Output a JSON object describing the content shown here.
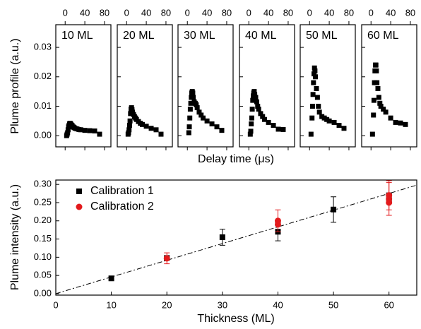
{
  "chart_data": [
    {
      "type": "scatter",
      "label": "10 ML",
      "color": "#000000",
      "ylabel": "Plume profile (a.u.)",
      "xlabel": "Delay time (μs)",
      "xlim": [
        -19,
        93
      ],
      "xticks": [
        0,
        40,
        80
      ],
      "ylim": [
        -0.0038,
        0.0377
      ],
      "yticks": [
        {
          "value": 0,
          "label": "0.00"
        },
        0.01,
        0.02,
        0.03
      ],
      "x": [
        3,
        4,
        5,
        6,
        7,
        8,
        9,
        10,
        11,
        12,
        14,
        16,
        18,
        20,
        24,
        28,
        32,
        40,
        50,
        60,
        70
      ],
      "values": [
        0.0,
        0.0005,
        0.001,
        0.002,
        0.003,
        0.0035,
        0.004,
        0.0042,
        0.004,
        0.0038,
        0.0035,
        0.003,
        0.0028,
        0.0025,
        0.0023,
        0.0021,
        0.002,
        0.0018,
        0.0017,
        0.0016,
        0.0005
      ]
    },
    {
      "type": "scatter",
      "label": "20 ML",
      "color": "#000000",
      "xlim": [
        -19,
        93
      ],
      "xticks": [
        0,
        40,
        80
      ],
      "ylim": [
        -0.0038,
        0.0377
      ],
      "x": [
        3,
        4,
        5,
        6,
        7,
        8,
        9,
        10,
        11,
        12,
        14,
        16,
        18,
        20,
        24,
        28,
        32,
        40,
        50,
        60,
        70
      ],
      "values": [
        0.0005,
        0.001,
        0.002,
        0.0035,
        0.005,
        0.0075,
        0.009,
        0.0095,
        0.0088,
        0.008,
        0.0072,
        0.0065,
        0.006,
        0.0055,
        0.0048,
        0.0042,
        0.0038,
        0.0032,
        0.0025,
        0.002,
        0.0005
      ]
    },
    {
      "type": "scatter",
      "label": "30 ML",
      "color": "#000000",
      "xlim": [
        -19,
        93
      ],
      "xticks": [
        0,
        40,
        80
      ],
      "ylim": [
        -0.0038,
        0.0377
      ],
      "x": [
        3,
        4,
        5,
        6,
        7,
        8,
        9,
        10,
        11,
        12,
        14,
        16,
        18,
        20,
        24,
        28,
        32,
        40,
        50,
        60,
        70
      ],
      "values": [
        0.001,
        0.003,
        0.006,
        0.009,
        0.011,
        0.013,
        0.0145,
        0.015,
        0.0145,
        0.013,
        0.0115,
        0.011,
        0.0105,
        0.0095,
        0.008,
        0.007,
        0.006,
        0.005,
        0.004,
        0.003,
        0.0018
      ]
    },
    {
      "type": "scatter",
      "label": "40 ML",
      "color": "#000000",
      "xlim": [
        -19,
        93
      ],
      "xticks": [
        0,
        40,
        80
      ],
      "ylim": [
        -0.0038,
        0.0377
      ],
      "x": [
        3,
        4,
        5,
        6,
        7,
        8,
        9,
        10,
        11,
        12,
        14,
        16,
        18,
        20,
        24,
        28,
        32,
        40,
        50,
        60,
        70
      ],
      "values": [
        0.0005,
        0.0015,
        0.004,
        0.006,
        0.009,
        0.012,
        0.0135,
        0.0145,
        0.015,
        0.014,
        0.013,
        0.0115,
        0.01,
        0.009,
        0.0075,
        0.0065,
        0.0055,
        0.0045,
        0.0035,
        0.0022,
        0.0021
      ]
    },
    {
      "type": "scatter",
      "label": "50 ML",
      "color": "#000000",
      "xlim": [
        -19,
        93
      ],
      "xticks": [
        0,
        40,
        80
      ],
      "ylim": [
        -0.0038,
        0.0377
      ],
      "x": [
        3,
        5,
        6,
        7,
        8,
        9,
        10,
        11,
        12,
        14,
        16,
        18,
        20,
        25,
        30,
        35,
        40,
        50,
        60,
        70
      ],
      "values": [
        0.0005,
        0.006,
        0.01,
        0.014,
        0.018,
        0.021,
        0.023,
        0.022,
        0.02,
        0.016,
        0.013,
        0.01,
        0.008,
        0.0065,
        0.006,
        0.0055,
        0.005,
        0.0045,
        0.0035,
        0.0025
      ]
    },
    {
      "type": "scatter",
      "label": "60 ML",
      "color": "#000000",
      "xlim": [
        -19,
        93
      ],
      "xticks": [
        0,
        40,
        80
      ],
      "ylim": [
        -0.0038,
        0.0377
      ],
      "x": [
        3,
        5,
        6,
        7,
        8,
        9,
        10,
        11,
        12,
        14,
        16,
        18,
        20,
        25,
        30,
        40,
        50,
        60,
        70
      ],
      "values": [
        0.0005,
        0.007,
        0.012,
        0.018,
        0.022,
        0.024,
        0.024,
        0.022,
        0.018,
        0.016,
        0.013,
        0.011,
        0.01,
        0.009,
        0.008,
        0.006,
        0.0045,
        0.0043,
        0.0038
      ]
    },
    {
      "type": "errorbar",
      "xlabel": "Thickness (ML)",
      "ylabel": "Plume intensity (a.u.)",
      "xlim": [
        0,
        65
      ],
      "xticks": [
        0,
        10,
        20,
        30,
        40,
        50,
        60
      ],
      "ylim": [
        -0.004,
        0.312
      ],
      "yticks": [
        {
          "value": 0,
          "label": "0.00"
        },
        0.05,
        {
          "value": 0.1,
          "label": "0.10"
        },
        0.15,
        {
          "value": 0.2,
          "label": "0.20"
        },
        0.25,
        {
          "value": 0.3,
          "label": "0.30"
        }
      ],
      "fit_line": {
        "x": [
          0,
          65
        ],
        "values": [
          0,
          0.298
        ]
      },
      "series": [
        {
          "name": "Calibration 1",
          "color": "#000000",
          "marker": "square",
          "x": [
            10,
            20,
            30,
            40,
            40,
            50,
            60,
            60
          ],
          "values": [
            0.042,
            0.098,
            0.155,
            0.17,
            0.195,
            0.231,
            0.255,
            0.27
          ],
          "errors": [
            null,
            null,
            0.022,
            0.025,
            null,
            0.035,
            null,
            null
          ]
        },
        {
          "name": "Calibration 2",
          "color": "#e31a1c",
          "marker": "circle",
          "x": [
            20,
            40,
            40,
            60,
            60,
            60
          ],
          "values": [
            0.097,
            0.2,
            0.19,
            0.26,
            0.27,
            0.25
          ],
          "errors": [
            0.015,
            0.03,
            null,
            0.045,
            0.04,
            null
          ]
        }
      ]
    }
  ]
}
